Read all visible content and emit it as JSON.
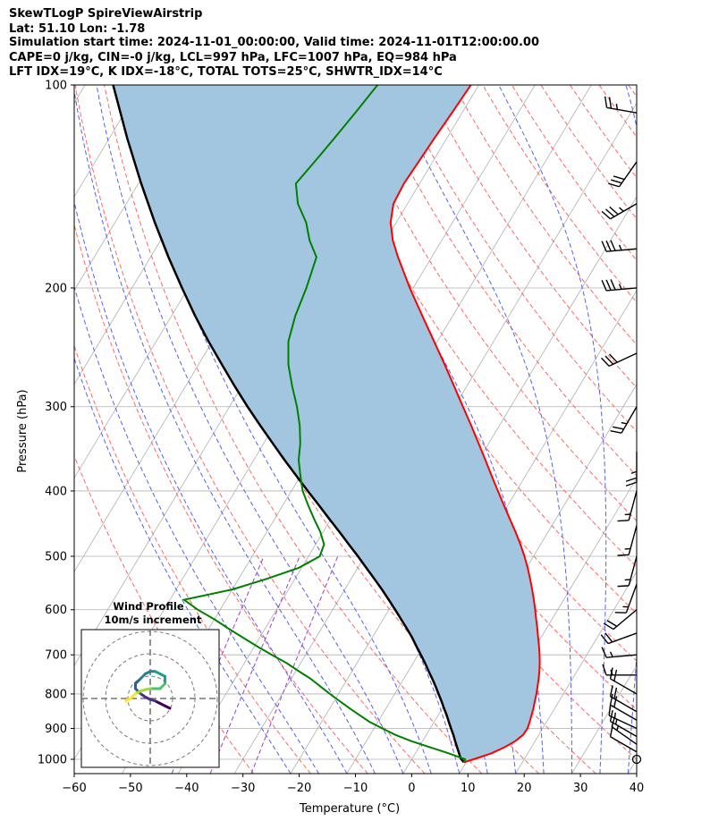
{
  "chart_data": {
    "type": "skewt-logp",
    "title_lines": [
      "SkewTLogP SpireViewAirstrip",
      "Lat: 51.10   Lon: -1.78",
      "Simulation start time: 2024-11-01_00:00:00, Valid time: 2024-11-01T12:00:00.00",
      "CAPE=0 j/kg, CIN=-0 j/kg, LCL=997 hPa, LFC=1007 hPa, EQ=984 hPa",
      "LFT IDX=19°C, K IDX=-18°C, TOTAL TOTS=25°C, SHWTR_IDX=14°C"
    ],
    "xlabel": "Temperature (°C)",
    "ylabel": "Pressure (hPa)",
    "xlim": [
      -60,
      40
    ],
    "ylim": [
      1050,
      100
    ],
    "x_ticks": [
      -60,
      -50,
      -40,
      -30,
      -20,
      -10,
      0,
      10,
      20,
      30,
      40
    ],
    "x_tick_labels": [
      "−60",
      "−50",
      "−40",
      "−30",
      "−20",
      "−10",
      "0",
      "10",
      "20",
      "30",
      "40"
    ],
    "y_ticks": [
      1000,
      900,
      800,
      700,
      600,
      500,
      400,
      300,
      200,
      100
    ],
    "y_tick_labels": [
      "1000",
      "900",
      "800",
      "700",
      "600",
      "500",
      "400",
      "300",
      "200",
      "100"
    ],
    "colors": {
      "temperature": "#ff0000",
      "dewpoint": "#008000",
      "parcel": "#000000",
      "cape_fill": "#a3c6e0",
      "dry_adiabat": "#ff6666",
      "moist_adiabat": "#5560ee",
      "mixing_ratio": "#9a3fc4",
      "isotherm": "#b0b0b0"
    },
    "temperature_profile": {
      "pressure": [
        1010,
        1000,
        980,
        960,
        940,
        920,
        900,
        880,
        860,
        840,
        820,
        800,
        780,
        760,
        740,
        720,
        700,
        680,
        660,
        640,
        620,
        600,
        580,
        560,
        540,
        520,
        500,
        480,
        460,
        440,
        420,
        400,
        380,
        360,
        340,
        320,
        300,
        280,
        260,
        240,
        220,
        200,
        180,
        170,
        160,
        150,
        140,
        130,
        120,
        110,
        100
      ],
      "temperature": [
        9.6,
        11.0,
        13.5,
        15.2,
        16.5,
        17.2,
        17.3,
        17.0,
        16.6,
        16.2,
        15.7,
        15.2,
        14.6,
        14.0,
        13.3,
        12.5,
        11.6,
        10.6,
        9.5,
        8.4,
        7.2,
        6.0,
        4.7,
        3.3,
        1.8,
        0.2,
        -1.6,
        -3.6,
        -5.8,
        -8.2,
        -10.7,
        -13.3,
        -16.0,
        -18.8,
        -21.8,
        -25.0,
        -28.5,
        -32.2,
        -36.2,
        -40.6,
        -45.4,
        -50.6,
        -56.0,
        -58.7,
        -61.0,
        -62.5,
        -62.8,
        -62.5,
        -62.2,
        -61.8,
        -61.4
      ]
    },
    "dewpoint_profile": {
      "pressure": [
        1010,
        1000,
        980,
        960,
        940,
        920,
        900,
        880,
        860,
        840,
        820,
        800,
        780,
        760,
        740,
        720,
        700,
        680,
        660,
        640,
        620,
        600,
        580,
        560,
        540,
        520,
        500,
        480,
        460,
        440,
        420,
        400,
        380,
        360,
        340,
        320,
        300,
        280,
        260,
        240,
        220,
        200,
        180,
        170,
        160,
        150,
        140,
        130,
        120,
        110,
        100
      ],
      "dewpoint": [
        9.6,
        9.5,
        6.0,
        2.0,
        -2.0,
        -5.5,
        -8.5,
        -11.5,
        -14.0,
        -16.5,
        -19.0,
        -21.5,
        -24.0,
        -26.5,
        -29.5,
        -32.5,
        -36.0,
        -39.5,
        -43.0,
        -46.5,
        -50.0,
        -54.0,
        -57.5,
        -50.0,
        -45.0,
        -40.5,
        -38.0,
        -38.5,
        -40.5,
        -43.0,
        -45.5,
        -48.0,
        -50.0,
        -52.0,
        -53.5,
        -55.5,
        -58.0,
        -61.0,
        -64.0,
        -66.5,
        -68.0,
        -69.0,
        -70.5,
        -73.5,
        -76.0,
        -79.5,
        -82.0,
        -81.0,
        -80.0,
        -79.0,
        -78.0
      ]
    },
    "parcel_profile": {
      "pressure": [
        1010,
        997,
        980,
        960,
        940,
        920,
        900,
        880,
        860,
        840,
        820,
        800,
        780,
        760,
        740,
        720,
        700,
        680,
        660,
        640,
        620,
        600,
        580,
        560,
        540,
        520,
        500,
        480,
        460,
        440,
        420,
        400,
        380,
        360,
        340,
        320,
        300,
        280,
        260,
        240,
        220,
        200,
        180,
        160,
        140,
        120,
        100
      ],
      "temperature": [
        9.6,
        8.6,
        7.8,
        6.8,
        5.8,
        4.8,
        3.7,
        2.6,
        1.5,
        0.3,
        -0.9,
        -2.2,
        -3.5,
        -4.9,
        -6.4,
        -7.9,
        -9.5,
        -11.2,
        -12.9,
        -14.8,
        -16.8,
        -18.9,
        -21.1,
        -23.4,
        -25.9,
        -28.5,
        -31.2,
        -34.1,
        -37.1,
        -40.3,
        -43.6,
        -47.1,
        -50.7,
        -54.5,
        -58.4,
        -62.5,
        -66.8,
        -71.2,
        -75.8,
        -80.7,
        -85.8,
        -91.1,
        -96.8,
        -102.9,
        -109.5,
        -116.8,
        -125.0
      ]
    },
    "wind_barbs": [
      {
        "pressure": 1000,
        "speed_kt": 0,
        "direction_deg": 0
      },
      {
        "pressure": 975,
        "speed_kt": 12,
        "direction_deg": 300
      },
      {
        "pressure": 950,
        "speed_kt": 15,
        "direction_deg": 305
      },
      {
        "pressure": 925,
        "speed_kt": 18,
        "direction_deg": 300
      },
      {
        "pressure": 900,
        "speed_kt": 18,
        "direction_deg": 295
      },
      {
        "pressure": 875,
        "speed_kt": 20,
        "direction_deg": 300
      },
      {
        "pressure": 850,
        "speed_kt": 20,
        "direction_deg": 300
      },
      {
        "pressure": 800,
        "speed_kt": 20,
        "direction_deg": 300
      },
      {
        "pressure": 750,
        "speed_kt": 15,
        "direction_deg": 270
      },
      {
        "pressure": 700,
        "speed_kt": 15,
        "direction_deg": 265
      },
      {
        "pressure": 650,
        "speed_kt": 20,
        "direction_deg": 250
      },
      {
        "pressure": 600,
        "speed_kt": 20,
        "direction_deg": 230
      },
      {
        "pressure": 550,
        "speed_kt": 15,
        "direction_deg": 200
      },
      {
        "pressure": 500,
        "speed_kt": 15,
        "direction_deg": 195
      },
      {
        "pressure": 450,
        "speed_kt": 15,
        "direction_deg": 195
      },
      {
        "pressure": 400,
        "speed_kt": 15,
        "direction_deg": 195
      },
      {
        "pressure": 350,
        "speed_kt": 25,
        "direction_deg": 180
      },
      {
        "pressure": 300,
        "speed_kt": 25,
        "direction_deg": 210
      },
      {
        "pressure": 250,
        "speed_kt": 30,
        "direction_deg": 245
      },
      {
        "pressure": 200,
        "speed_kt": 35,
        "direction_deg": 265
      },
      {
        "pressure": 175,
        "speed_kt": 35,
        "direction_deg": 265
      },
      {
        "pressure": 150,
        "speed_kt": 35,
        "direction_deg": 240
      },
      {
        "pressure": 130,
        "speed_kt": 30,
        "direction_deg": 215
      },
      {
        "pressure": 110,
        "speed_kt": 25,
        "direction_deg": 280
      }
    ],
    "inset": {
      "title": "Wind Profile",
      "subtitle": "10m/s increment",
      "ring_increment_ms": 10,
      "rings": 3,
      "hodograph": {
        "u": [
          4,
          3,
          2,
          1,
          0,
          -1,
          -2,
          -3,
          -3,
          -2,
          -1,
          0,
          1,
          2,
          3,
          3,
          2,
          1,
          0,
          -1,
          -2,
          -3,
          -4,
          -5
        ],
        "v": [
          -2,
          -1.5,
          -1,
          -0.5,
          -0.2,
          0.3,
          1,
          2,
          3,
          4,
          5,
          5.5,
          5.5,
          5,
          4.5,
          3,
          2,
          2,
          2,
          1.8,
          1.5,
          1,
          0,
          -0.5
        ]
      }
    }
  }
}
